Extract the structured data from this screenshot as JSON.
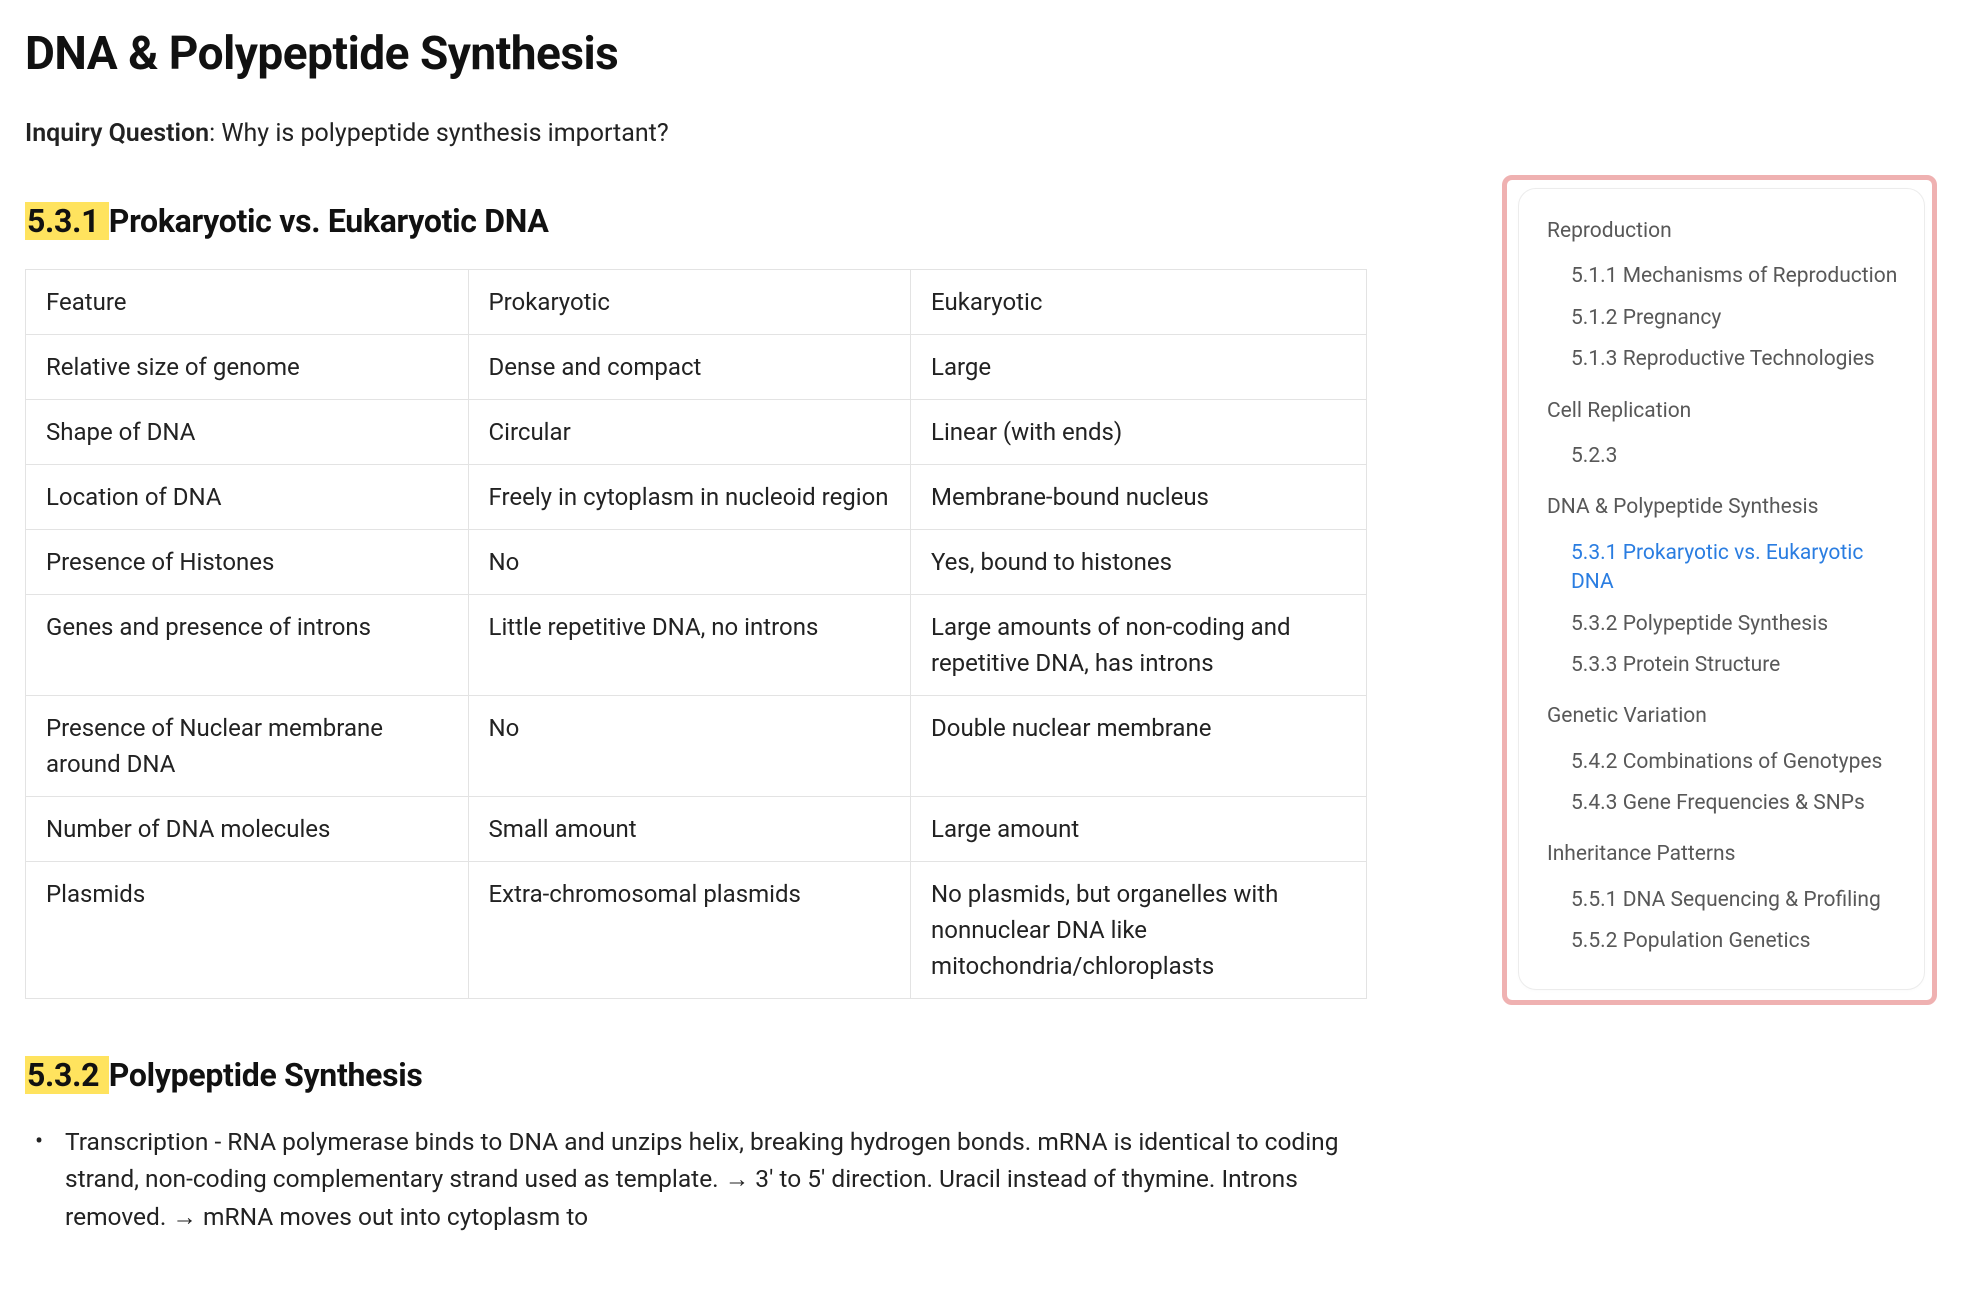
{
  "page": {
    "title": "DNA & Polypeptide Synthesis",
    "inquiry_label": "Inquiry Question",
    "inquiry_text": ": Why is polypeptide synthesis important?"
  },
  "section1": {
    "num": "5.3.1 ",
    "title": "Prokaryotic vs. Eukaryotic DNA"
  },
  "table": {
    "columns": [
      "Feature",
      "Prokaryotic",
      "Eukaryotic"
    ],
    "rows": [
      [
        "Relative size of genome",
        "Dense and compact",
        "Large"
      ],
      [
        "Shape of DNA",
        "Circular",
        "Linear (with ends)"
      ],
      [
        "Location of DNA",
        "Freely in cytoplasm in nucleoid region",
        "Membrane-bound nucleus"
      ],
      [
        "Presence of Histones",
        "No",
        "Yes, bound to histones"
      ],
      [
        "Genes and presence of introns",
        "Little repetitive DNA, no introns",
        "Large amounts of non-coding and repetitive DNA, has introns"
      ],
      [
        "Presence of Nuclear membrane around DNA",
        "No",
        "Double nuclear membrane"
      ],
      [
        "Number of DNA molecules",
        "Small amount",
        "Large amount"
      ],
      [
        "Plasmids",
        "Extra-chromosomal plasmids",
        "No plasmids, but organelles with nonnuclear DNA like mitochondria/chloroplasts"
      ]
    ]
  },
  "section2": {
    "num": "5.3.2 ",
    "title": "Polypeptide Synthesis"
  },
  "bullets": {
    "items": [
      "Transcription - RNA polymerase binds to DNA and unzips helix, breaking hydrogen bonds. mRNA is identical to coding strand, non-coding complementary strand used as template. → 3' to 5' direction. Uracil instead of thymine. Introns removed. → mRNA moves out into cytoplasm to"
    ]
  },
  "toc": {
    "groups": [
      {
        "title": "Reproduction",
        "items": [
          {
            "label": "5.1.1 Mechanisms of Reproduction",
            "active": false
          },
          {
            "label": "5.1.2 Pregnancy",
            "active": false
          },
          {
            "label": "5.1.3 Reproductive Technologies",
            "active": false
          }
        ]
      },
      {
        "title": "Cell Replication",
        "items": [
          {
            "label": "5.2.3",
            "active": false
          }
        ]
      },
      {
        "title": "DNA & Polypeptide Synthesis",
        "items": [
          {
            "label": "5.3.1 Prokaryotic vs. Eukaryotic DNA",
            "active": true
          },
          {
            "label": "5.3.2 Polypeptide Synthesis",
            "active": false
          },
          {
            "label": "5.3.3 Protein Structure",
            "active": false
          }
        ]
      },
      {
        "title": "Genetic Variation",
        "items": [
          {
            "label": "5.4.2 Combinations of Genotypes",
            "active": false
          },
          {
            "label": "5.4.3 Gene Frequencies & SNPs",
            "active": false
          }
        ]
      },
      {
        "title": "Inheritance Patterns",
        "items": [
          {
            "label": "5.5.1 DNA Sequencing & Profiling",
            "active": false
          },
          {
            "label": "5.5.2 Population Genetics",
            "active": false
          }
        ]
      }
    ]
  },
  "style": {
    "highlight_bg": "#ffe35e",
    "active_link_color": "#2a7de1",
    "sidebar_border_color": "#efb1b1",
    "table_border_color": "#e3e3e3",
    "text_color": "#1a1a1a",
    "sidebar_text_color": "#585858"
  }
}
